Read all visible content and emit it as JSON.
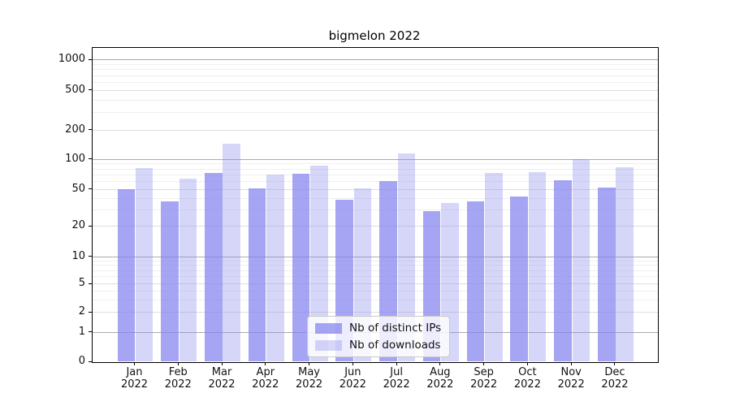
{
  "title": "bigmelon 2022",
  "chart_data": {
    "type": "bar",
    "title": "bigmelon 2022",
    "x_axis": {
      "categories": [
        "Jan",
        "Feb",
        "Mar",
        "Apr",
        "May",
        "Jun",
        "Jul",
        "Aug",
        "Sep",
        "Oct",
        "Nov",
        "Dec"
      ],
      "year_line": "2022"
    },
    "y_axis": {
      "scale": "symlog",
      "ticks": [
        0,
        1,
        2,
        5,
        10,
        20,
        50,
        100,
        200,
        500,
        1000
      ],
      "range": [
        0,
        1000
      ],
      "grid": true
    },
    "series": [
      {
        "name": "Nb of distinct IPs",
        "color": "rgba(130,130,240,0.72)",
        "solid_color": "#a6a6f3",
        "values": [
          50,
          37,
          73,
          51,
          71,
          39,
          61,
          29,
          37,
          42,
          62,
          52
        ]
      },
      {
        "name": "Nb of downloads",
        "color": "rgba(140,140,238,0.36)",
        "solid_color": "#d9d9fa",
        "values": [
          81,
          64,
          145,
          70,
          87,
          51,
          115,
          36,
          73,
          74,
          100,
          83
        ]
      }
    ],
    "legend": {
      "position": "lower center",
      "items": [
        "Nb of distinct IPs",
        "Nb of downloads"
      ]
    }
  }
}
